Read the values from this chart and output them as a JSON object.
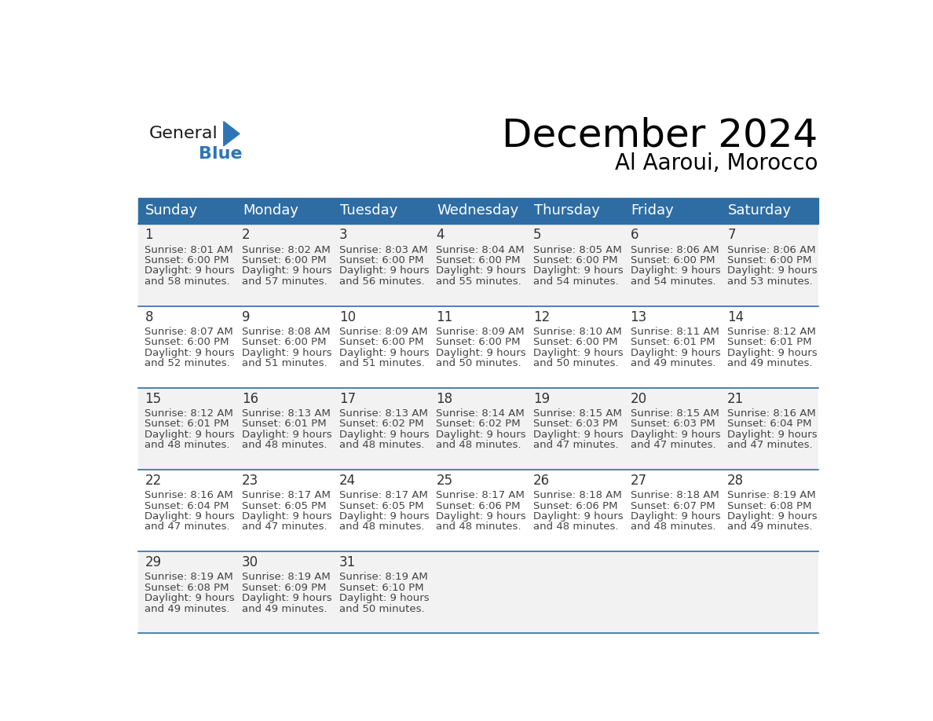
{
  "title": "December 2024",
  "subtitle": "Al Aaroui, Morocco",
  "days_of_week": [
    "Sunday",
    "Monday",
    "Tuesday",
    "Wednesday",
    "Thursday",
    "Friday",
    "Saturday"
  ],
  "header_bg": "#2E6DA4",
  "header_text": "#FFFFFF",
  "cell_bg_odd": "#F2F2F2",
  "cell_bg_even": "#FFFFFF",
  "border_color": "#2E6DA4",
  "text_color": "#444444",
  "day_num_color": "#333333",
  "calendar_data": [
    [
      {
        "day": 1,
        "sunrise": "8:01 AM",
        "sunset": "6:00 PM",
        "daylight": "9 hours and 58 minutes."
      },
      {
        "day": 2,
        "sunrise": "8:02 AM",
        "sunset": "6:00 PM",
        "daylight": "9 hours and 57 minutes."
      },
      {
        "day": 3,
        "sunrise": "8:03 AM",
        "sunset": "6:00 PM",
        "daylight": "9 hours and 56 minutes."
      },
      {
        "day": 4,
        "sunrise": "8:04 AM",
        "sunset": "6:00 PM",
        "daylight": "9 hours and 55 minutes."
      },
      {
        "day": 5,
        "sunrise": "8:05 AM",
        "sunset": "6:00 PM",
        "daylight": "9 hours and 54 minutes."
      },
      {
        "day": 6,
        "sunrise": "8:06 AM",
        "sunset": "6:00 PM",
        "daylight": "9 hours and 54 minutes."
      },
      {
        "day": 7,
        "sunrise": "8:06 AM",
        "sunset": "6:00 PM",
        "daylight": "9 hours and 53 minutes."
      }
    ],
    [
      {
        "day": 8,
        "sunrise": "8:07 AM",
        "sunset": "6:00 PM",
        "daylight": "9 hours and 52 minutes."
      },
      {
        "day": 9,
        "sunrise": "8:08 AM",
        "sunset": "6:00 PM",
        "daylight": "9 hours and 51 minutes."
      },
      {
        "day": 10,
        "sunrise": "8:09 AM",
        "sunset": "6:00 PM",
        "daylight": "9 hours and 51 minutes."
      },
      {
        "day": 11,
        "sunrise": "8:09 AM",
        "sunset": "6:00 PM",
        "daylight": "9 hours and 50 minutes."
      },
      {
        "day": 12,
        "sunrise": "8:10 AM",
        "sunset": "6:00 PM",
        "daylight": "9 hours and 50 minutes."
      },
      {
        "day": 13,
        "sunrise": "8:11 AM",
        "sunset": "6:01 PM",
        "daylight": "9 hours and 49 minutes."
      },
      {
        "day": 14,
        "sunrise": "8:12 AM",
        "sunset": "6:01 PM",
        "daylight": "9 hours and 49 minutes."
      }
    ],
    [
      {
        "day": 15,
        "sunrise": "8:12 AM",
        "sunset": "6:01 PM",
        "daylight": "9 hours and 48 minutes."
      },
      {
        "day": 16,
        "sunrise": "8:13 AM",
        "sunset": "6:01 PM",
        "daylight": "9 hours and 48 minutes."
      },
      {
        "day": 17,
        "sunrise": "8:13 AM",
        "sunset": "6:02 PM",
        "daylight": "9 hours and 48 minutes."
      },
      {
        "day": 18,
        "sunrise": "8:14 AM",
        "sunset": "6:02 PM",
        "daylight": "9 hours and 48 minutes."
      },
      {
        "day": 19,
        "sunrise": "8:15 AM",
        "sunset": "6:03 PM",
        "daylight": "9 hours and 47 minutes."
      },
      {
        "day": 20,
        "sunrise": "8:15 AM",
        "sunset": "6:03 PM",
        "daylight": "9 hours and 47 minutes."
      },
      {
        "day": 21,
        "sunrise": "8:16 AM",
        "sunset": "6:04 PM",
        "daylight": "9 hours and 47 minutes."
      }
    ],
    [
      {
        "day": 22,
        "sunrise": "8:16 AM",
        "sunset": "6:04 PM",
        "daylight": "9 hours and 47 minutes."
      },
      {
        "day": 23,
        "sunrise": "8:17 AM",
        "sunset": "6:05 PM",
        "daylight": "9 hours and 47 minutes."
      },
      {
        "day": 24,
        "sunrise": "8:17 AM",
        "sunset": "6:05 PM",
        "daylight": "9 hours and 48 minutes."
      },
      {
        "day": 25,
        "sunrise": "8:17 AM",
        "sunset": "6:06 PM",
        "daylight": "9 hours and 48 minutes."
      },
      {
        "day": 26,
        "sunrise": "8:18 AM",
        "sunset": "6:06 PM",
        "daylight": "9 hours and 48 minutes."
      },
      {
        "day": 27,
        "sunrise": "8:18 AM",
        "sunset": "6:07 PM",
        "daylight": "9 hours and 48 minutes."
      },
      {
        "day": 28,
        "sunrise": "8:19 AM",
        "sunset": "6:08 PM",
        "daylight": "9 hours and 49 minutes."
      }
    ],
    [
      {
        "day": 29,
        "sunrise": "8:19 AM",
        "sunset": "6:08 PM",
        "daylight": "9 hours and 49 minutes."
      },
      {
        "day": 30,
        "sunrise": "8:19 AM",
        "sunset": "6:09 PM",
        "daylight": "9 hours and 49 minutes."
      },
      {
        "day": 31,
        "sunrise": "8:19 AM",
        "sunset": "6:10 PM",
        "daylight": "9 hours and 50 minutes."
      },
      null,
      null,
      null,
      null
    ]
  ],
  "logo_general_color": "#1a1a1a",
  "logo_blue_color": "#2E75B6",
  "title_fontsize": 36,
  "subtitle_fontsize": 20,
  "header_fontsize": 13,
  "daynum_fontsize": 12,
  "cell_fontsize": 9.5
}
